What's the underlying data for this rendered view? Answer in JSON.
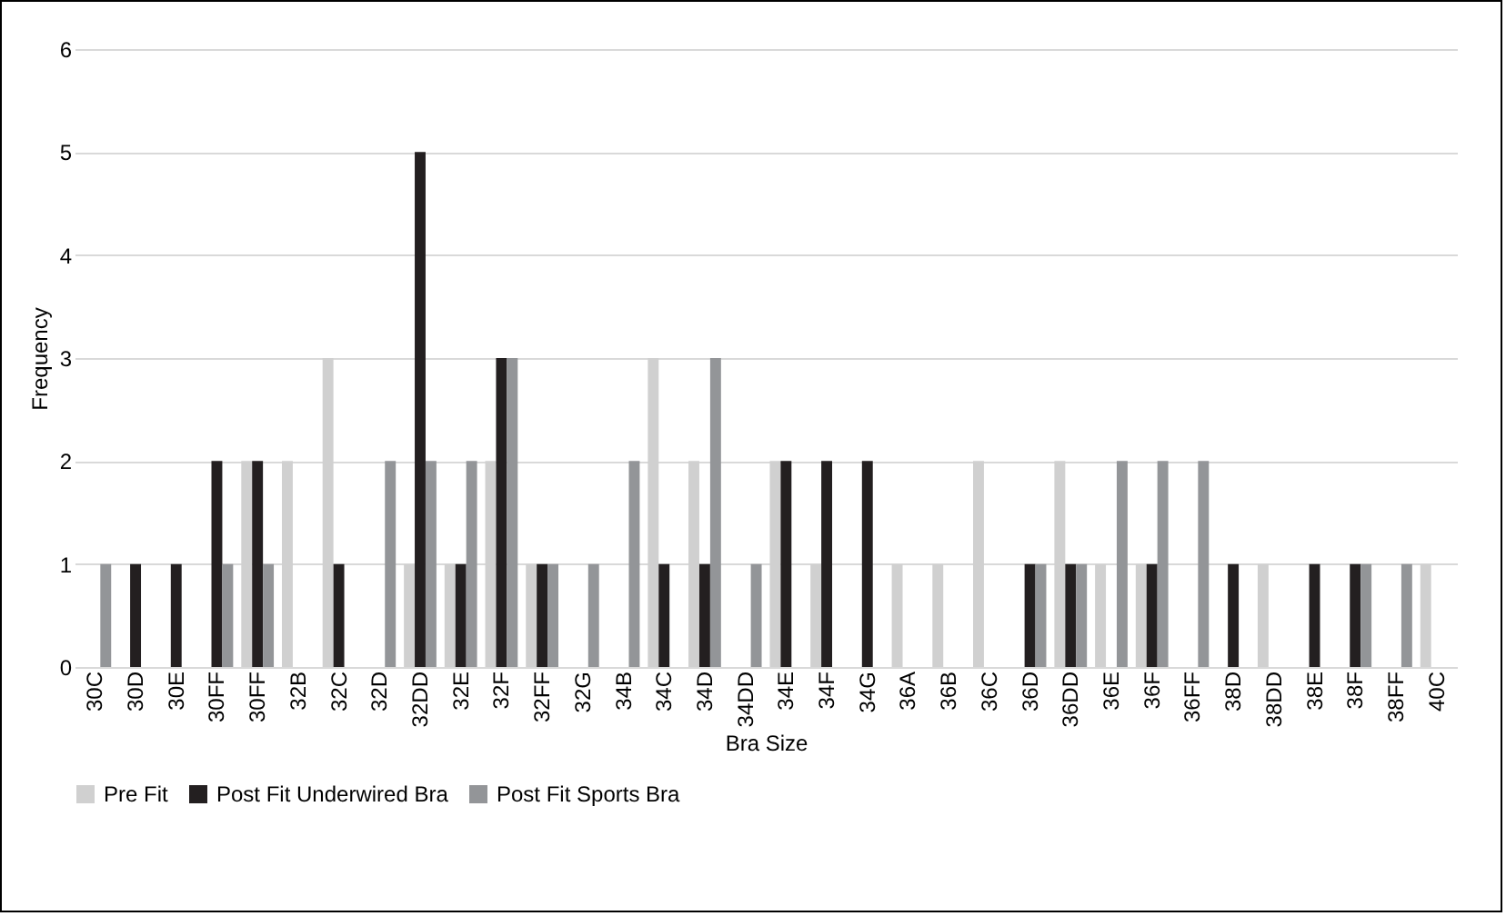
{
  "chart_data": {
    "type": "bar",
    "xlabel": "Bra Size",
    "ylabel": "Frequency",
    "categories": [
      "30C",
      "30D",
      "30E",
      "30FF",
      "30FF",
      "32B",
      "32C",
      "32D",
      "32DD",
      "32E",
      "32F",
      "32FF",
      "32G",
      "34B",
      "34C",
      "34D",
      "34DD",
      "34E",
      "34F",
      "34G",
      "36A",
      "36B",
      "36C",
      "36D",
      "36DD",
      "36E",
      "36F",
      "36FF",
      "38D",
      "38DD",
      "38E",
      "38F",
      "38FF",
      "40C"
    ],
    "series": [
      {
        "name": "Pre Fit",
        "color": "#d0d0d0",
        "values": [
          0,
          0,
          0,
          0,
          2,
          2,
          3,
          0,
          1,
          1,
          2,
          1,
          0,
          0,
          3,
          2,
          0,
          2,
          1,
          0,
          1,
          1,
          2,
          0,
          2,
          1,
          1,
          0,
          0,
          1,
          0,
          0,
          0,
          1
        ]
      },
      {
        "name": "Post Fit Underwired Bra",
        "color": "#231f20",
        "values": [
          0,
          1,
          1,
          2,
          2,
          0,
          1,
          0,
          5,
          1,
          3,
          1,
          0,
          0,
          1,
          1,
          0,
          2,
          2,
          2,
          0,
          0,
          0,
          1,
          1,
          0,
          1,
          0,
          1,
          0,
          1,
          1,
          0,
          0
        ]
      },
      {
        "name": "Post Fit Sports Bra",
        "color": "#939598",
        "values": [
          1,
          0,
          0,
          1,
          1,
          0,
          0,
          2,
          2,
          2,
          3,
          1,
          1,
          2,
          0,
          3,
          1,
          0,
          0,
          0,
          0,
          0,
          0,
          1,
          1,
          2,
          2,
          2,
          0,
          0,
          0,
          1,
          1,
          0
        ]
      }
    ],
    "ylim": [
      0,
      6
    ],
    "yticks": [
      0,
      1,
      2,
      3,
      4,
      5,
      6
    ],
    "grid": "y",
    "legend": "bottom"
  }
}
